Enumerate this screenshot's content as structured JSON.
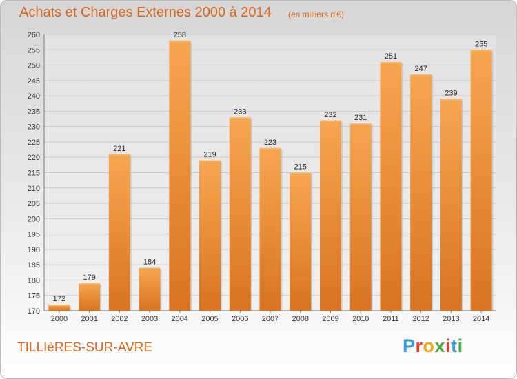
{
  "title": "Achats et Charges Externes 2000 à 2014",
  "subtitle": "(en milliers d'€)",
  "town": "TILLIèRES-SUR-AVRE",
  "brand": {
    "letters": [
      "P",
      "r",
      "o",
      "x",
      "i",
      "t",
      "i"
    ],
    "colors": [
      "#3b9ad8",
      "#e8412b",
      "#f2a41b",
      "#4aa83f",
      "#e8412b",
      "#3b9ad8",
      "#4aa83f"
    ]
  },
  "colors": {
    "bar": "#f0922f",
    "bar_dark": "#d97320",
    "text": "#d4691f",
    "grid": "#c8c8c8"
  },
  "chart_data": {
    "type": "bar",
    "categories": [
      "2000",
      "2001",
      "2002",
      "2003",
      "2004",
      "2005",
      "2006",
      "2007",
      "2008",
      "2009",
      "2010",
      "2011",
      "2012",
      "2013",
      "2014"
    ],
    "values": [
      172,
      179,
      221,
      184,
      258,
      219,
      233,
      223,
      215,
      232,
      231,
      251,
      247,
      239,
      255
    ],
    "ylim": [
      170,
      260
    ],
    "yticks": [
      170,
      175,
      180,
      185,
      190,
      195,
      200,
      205,
      210,
      215,
      220,
      225,
      230,
      235,
      240,
      245,
      250,
      255,
      260
    ],
    "grid": true
  }
}
